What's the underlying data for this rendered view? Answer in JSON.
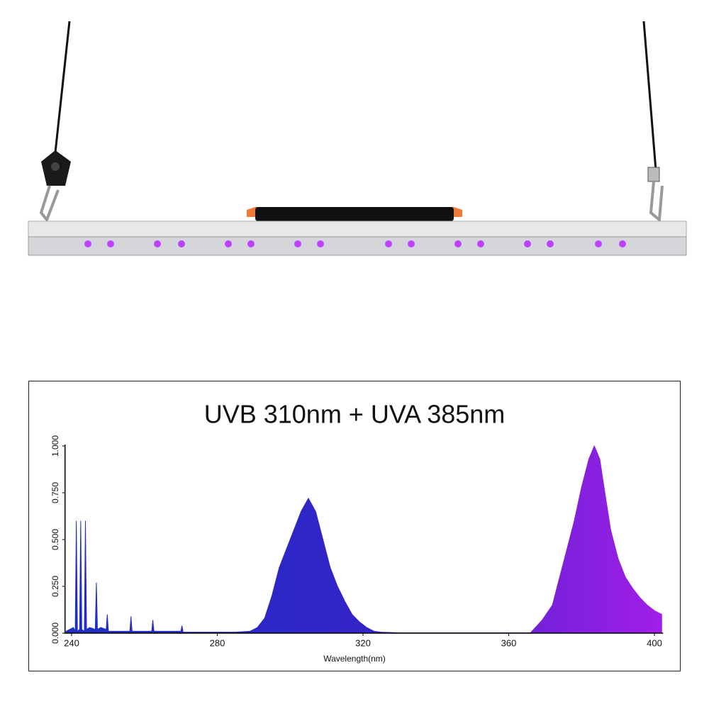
{
  "chart_data": {
    "type": "area",
    "title": "UVB 310nm + UVA 385nm",
    "x_label": "Wavelength(nm)",
    "x": [
      238.5,
      239.5,
      240.5,
      241,
      241.3,
      241.6,
      242.2,
      242.5,
      242.8,
      243.5,
      243.8,
      244.1,
      245,
      246.5,
      246.8,
      247.1,
      248,
      249.5,
      249.8,
      250.1,
      256,
      256.3,
      256.6,
      262,
      262.3,
      262.6,
      270,
      270.3,
      270.6,
      285,
      289,
      291,
      293,
      295,
      297,
      299,
      301,
      303,
      305,
      307,
      309,
      311,
      313,
      315,
      317,
      319,
      321,
      323,
      325,
      330,
      340,
      350,
      360,
      366,
      369.2,
      372,
      374,
      376,
      378,
      380,
      382,
      383.5,
      385,
      386,
      388,
      390,
      392,
      394,
      396,
      398,
      400,
      402
    ],
    "values": [
      0.01,
      0.02,
      0.03,
      0.01,
      0.6,
      0.01,
      0.02,
      0.6,
      0.02,
      0.01,
      0.6,
      0.02,
      0.03,
      0.02,
      0.27,
      0.02,
      0.03,
      0.02,
      0.1,
      0.01,
      0.01,
      0.09,
      0.01,
      0.01,
      0.07,
      0.01,
      0.01,
      0.04,
      0.005,
      0.005,
      0.01,
      0.03,
      0.08,
      0.2,
      0.35,
      0.45,
      0.55,
      0.65,
      0.72,
      0.65,
      0.5,
      0.35,
      0.25,
      0.17,
      0.1,
      0.06,
      0.03,
      0.01,
      0.005,
      0.002,
      0.002,
      0.002,
      0.002,
      0.002,
      0.07,
      0.15,
      0.3,
      0.45,
      0.6,
      0.78,
      0.93,
      1.0,
      0.93,
      0.8,
      0.55,
      0.4,
      0.3,
      0.24,
      0.19,
      0.15,
      0.12,
      0.1
    ],
    "colors": [
      "#1f2fc4",
      "#3324c8",
      "#a21ee6"
    ],
    "xlim": [
      238,
      402
    ],
    "xticks": [
      240,
      280,
      320,
      360,
      400
    ],
    "ylim": [
      0,
      1
    ],
    "yticks": [
      {
        "value": 0,
        "label": "0.000"
      },
      {
        "value": 0.25,
        "label": "0.250"
      },
      {
        "value": 0.5,
        "label": "0.500"
      },
      {
        "value": 0.75,
        "label": "0.750"
      },
      {
        "value": 1,
        "label": "1.000"
      }
    ]
  }
}
